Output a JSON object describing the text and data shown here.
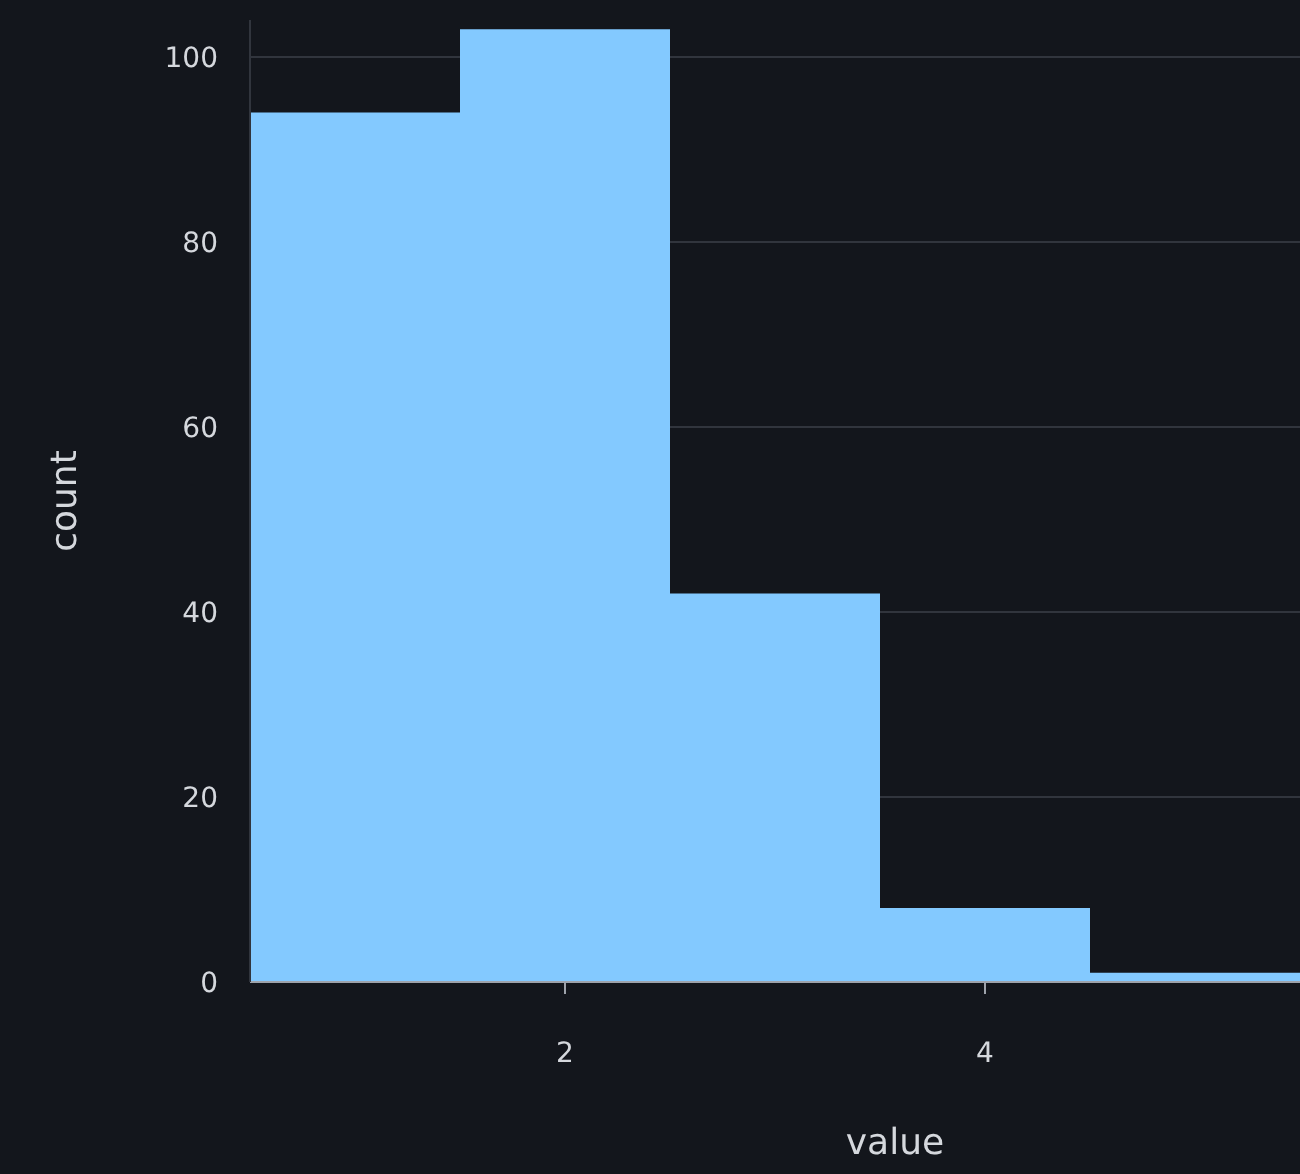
{
  "chart_data": {
    "type": "histogram",
    "xlabel": "value",
    "ylabel": "count",
    "bins": [
      0.5,
      1.5,
      2.5,
      3.5,
      4.5,
      5.5
    ],
    "values": [
      94,
      103,
      42,
      8,
      1
    ],
    "color": "#83c9ff",
    "xlim": [
      0.5,
      5.5
    ],
    "xticks": [
      2,
      4
    ],
    "ylim": [
      0,
      104
    ],
    "yticks": [
      0,
      20,
      40,
      60,
      80,
      100
    ],
    "grid": "y"
  }
}
